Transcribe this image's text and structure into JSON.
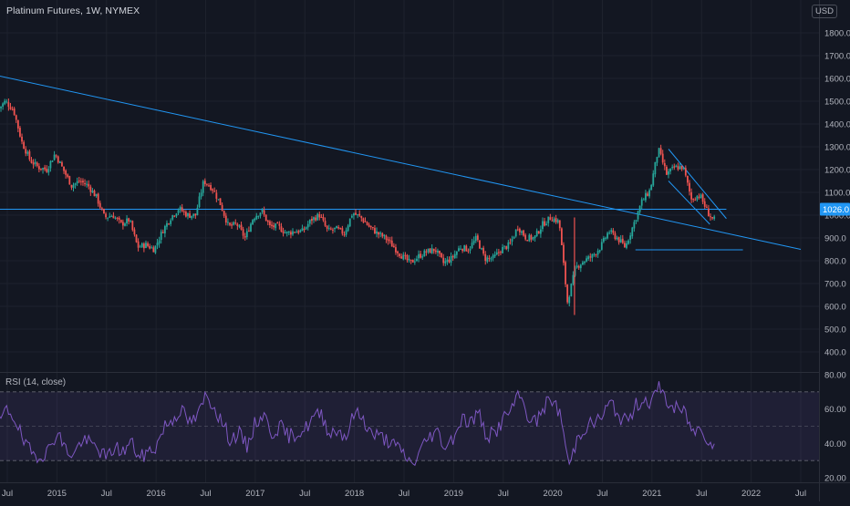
{
  "header": {
    "symbol_title": "Platinum Futures, 1W, NYMEX",
    "currency": "USD"
  },
  "rsi_panel": {
    "title": "RSI (14, close)"
  },
  "chart_data": [
    {
      "type": "candlestick",
      "title": "Platinum Futures, 1W, NYMEX",
      "xlabel": "",
      "ylabel": "",
      "currency": "USD",
      "ylim": [
        400,
        1800
      ],
      "y_ticks": [
        "1800.0",
        "1700.0",
        "1600.0",
        "1500.0",
        "1400.0",
        "1300.0",
        "1200.0",
        "1100.0",
        "1000.0",
        "900.0",
        "800.0",
        "700.0",
        "600.0",
        "500.0",
        "400.0"
      ],
      "x_ticks": [
        "Jul",
        "2015",
        "Jul",
        "2016",
        "Jul",
        "2017",
        "Jul",
        "2018",
        "Jul",
        "2019",
        "Jul",
        "2020",
        "Jul",
        "2021",
        "Jul",
        "2022",
        "Jul"
      ],
      "x_range": [
        "2014-06",
        "2022-08"
      ],
      "last_price": "1026.0",
      "grid": true,
      "colors": {
        "up": "#26a69a",
        "down": "#ef5350",
        "drawing": "#2196f3",
        "background": "#131722"
      },
      "price_path": [
        {
          "date": "2014-06",
          "price": 1460
        },
        {
          "date": "2014-07",
          "price": 1500
        },
        {
          "date": "2014-08",
          "price": 1460
        },
        {
          "date": "2014-09",
          "price": 1320
        },
        {
          "date": "2014-10",
          "price": 1240
        },
        {
          "date": "2014-11",
          "price": 1210
        },
        {
          "date": "2014-12",
          "price": 1200
        },
        {
          "date": "2015-01",
          "price": 1270
        },
        {
          "date": "2015-02",
          "price": 1200
        },
        {
          "date": "2015-03",
          "price": 1130
        },
        {
          "date": "2015-04",
          "price": 1150
        },
        {
          "date": "2015-05",
          "price": 1130
        },
        {
          "date": "2015-06",
          "price": 1080
        },
        {
          "date": "2015-07",
          "price": 990
        },
        {
          "date": "2015-08",
          "price": 1000
        },
        {
          "date": "2015-09",
          "price": 960
        },
        {
          "date": "2015-10",
          "price": 980
        },
        {
          "date": "2015-11",
          "price": 860
        },
        {
          "date": "2015-12",
          "price": 870
        },
        {
          "date": "2016-01",
          "price": 850
        },
        {
          "date": "2016-02",
          "price": 930
        },
        {
          "date": "2016-03",
          "price": 990
        },
        {
          "date": "2016-04",
          "price": 1030
        },
        {
          "date": "2016-05",
          "price": 1000
        },
        {
          "date": "2016-06",
          "price": 1000
        },
        {
          "date": "2016-07",
          "price": 1150
        },
        {
          "date": "2016-08",
          "price": 1120
        },
        {
          "date": "2016-09",
          "price": 1050
        },
        {
          "date": "2016-10",
          "price": 950
        },
        {
          "date": "2016-11",
          "price": 960
        },
        {
          "date": "2016-12",
          "price": 900
        },
        {
          "date": "2017-01",
          "price": 990
        },
        {
          "date": "2017-02",
          "price": 1020
        },
        {
          "date": "2017-03",
          "price": 950
        },
        {
          "date": "2017-04",
          "price": 950
        },
        {
          "date": "2017-05",
          "price": 920
        },
        {
          "date": "2017-06",
          "price": 930
        },
        {
          "date": "2017-07",
          "price": 930
        },
        {
          "date": "2017-08",
          "price": 980
        },
        {
          "date": "2017-09",
          "price": 1000
        },
        {
          "date": "2017-10",
          "price": 930
        },
        {
          "date": "2017-11",
          "price": 940
        },
        {
          "date": "2017-12",
          "price": 920
        },
        {
          "date": "2018-01",
          "price": 1010
        },
        {
          "date": "2018-02",
          "price": 990
        },
        {
          "date": "2018-03",
          "price": 950
        },
        {
          "date": "2018-04",
          "price": 920
        },
        {
          "date": "2018-05",
          "price": 900
        },
        {
          "date": "2018-06",
          "price": 860
        },
        {
          "date": "2018-07",
          "price": 820
        },
        {
          "date": "2018-08",
          "price": 790
        },
        {
          "date": "2018-09",
          "price": 820
        },
        {
          "date": "2018-10",
          "price": 840
        },
        {
          "date": "2018-11",
          "price": 850
        },
        {
          "date": "2018-12",
          "price": 790
        },
        {
          "date": "2019-01",
          "price": 810
        },
        {
          "date": "2019-02",
          "price": 860
        },
        {
          "date": "2019-03",
          "price": 850
        },
        {
          "date": "2019-04",
          "price": 900
        },
        {
          "date": "2019-05",
          "price": 810
        },
        {
          "date": "2019-06",
          "price": 810
        },
        {
          "date": "2019-07",
          "price": 850
        },
        {
          "date": "2019-08",
          "price": 870
        },
        {
          "date": "2019-09",
          "price": 950
        },
        {
          "date": "2019-10",
          "price": 900
        },
        {
          "date": "2019-11",
          "price": 900
        },
        {
          "date": "2019-12",
          "price": 960
        },
        {
          "date": "2020-01",
          "price": 990
        },
        {
          "date": "2020-02",
          "price": 970
        },
        {
          "date": "2020-03",
          "price": 620
        },
        {
          "date": "2020-04",
          "price": 770
        },
        {
          "date": "2020-05",
          "price": 800
        },
        {
          "date": "2020-06",
          "price": 820
        },
        {
          "date": "2020-07",
          "price": 860
        },
        {
          "date": "2020-08",
          "price": 930
        },
        {
          "date": "2020-09",
          "price": 900
        },
        {
          "date": "2020-10",
          "price": 860
        },
        {
          "date": "2020-11",
          "price": 960
        },
        {
          "date": "2020-12",
          "price": 1060
        },
        {
          "date": "2021-01",
          "price": 1110
        },
        {
          "date": "2021-02",
          "price": 1290
        },
        {
          "date": "2021-03",
          "price": 1180
        },
        {
          "date": "2021-04",
          "price": 1210
        },
        {
          "date": "2021-05",
          "price": 1210
        },
        {
          "date": "2021-06",
          "price": 1070
        },
        {
          "date": "2021-07",
          "price": 1090
        },
        {
          "date": "2021-08",
          "price": 1010
        },
        {
          "date": "2021-08-20",
          "price": 980
        }
      ]
    },
    {
      "type": "line",
      "title": "RSI (14, close)",
      "ylim": [
        20,
        80
      ],
      "y_ticks": [
        "80.00",
        "60.00",
        "40.00",
        "20.00"
      ],
      "bands": [
        70,
        50,
        30
      ],
      "colors": {
        "line": "#7e57c2",
        "band_fill": "#7e57c2"
      },
      "rsi_path": [
        {
          "date": "2014-06",
          "value": 52
        },
        {
          "date": "2014-07",
          "value": 60
        },
        {
          "date": "2014-08",
          "value": 54
        },
        {
          "date": "2014-09",
          "value": 40
        },
        {
          "date": "2014-10",
          "value": 34
        },
        {
          "date": "2014-11",
          "value": 33
        },
        {
          "date": "2014-12",
          "value": 36
        },
        {
          "date": "2015-01",
          "value": 47
        },
        {
          "date": "2015-02",
          "value": 37
        },
        {
          "date": "2015-03",
          "value": 33
        },
        {
          "date": "2015-04",
          "value": 42
        },
        {
          "date": "2015-05",
          "value": 40
        },
        {
          "date": "2015-06",
          "value": 37
        },
        {
          "date": "2015-07",
          "value": 31
        },
        {
          "date": "2015-08",
          "value": 38
        },
        {
          "date": "2015-09",
          "value": 35
        },
        {
          "date": "2015-10",
          "value": 41
        },
        {
          "date": "2015-11",
          "value": 31
        },
        {
          "date": "2015-12",
          "value": 35
        },
        {
          "date": "2016-01",
          "value": 38
        },
        {
          "date": "2016-02",
          "value": 50
        },
        {
          "date": "2016-03",
          "value": 54
        },
        {
          "date": "2016-04",
          "value": 60
        },
        {
          "date": "2016-05",
          "value": 52
        },
        {
          "date": "2016-06",
          "value": 55
        },
        {
          "date": "2016-07",
          "value": 68
        },
        {
          "date": "2016-08",
          "value": 62
        },
        {
          "date": "2016-09",
          "value": 52
        },
        {
          "date": "2016-10",
          "value": 42
        },
        {
          "date": "2016-11",
          "value": 46
        },
        {
          "date": "2016-12",
          "value": 38
        },
        {
          "date": "2017-01",
          "value": 52
        },
        {
          "date": "2017-02",
          "value": 57
        },
        {
          "date": "2017-03",
          "value": 46
        },
        {
          "date": "2017-04",
          "value": 50
        },
        {
          "date": "2017-05",
          "value": 44
        },
        {
          "date": "2017-06",
          "value": 46
        },
        {
          "date": "2017-07",
          "value": 48
        },
        {
          "date": "2017-08",
          "value": 55
        },
        {
          "date": "2017-09",
          "value": 57
        },
        {
          "date": "2017-10",
          "value": 46
        },
        {
          "date": "2017-11",
          "value": 48
        },
        {
          "date": "2017-12",
          "value": 44
        },
        {
          "date": "2018-01",
          "value": 58
        },
        {
          "date": "2018-02",
          "value": 55
        },
        {
          "date": "2018-03",
          "value": 46
        },
        {
          "date": "2018-04",
          "value": 44
        },
        {
          "date": "2018-05",
          "value": 42
        },
        {
          "date": "2018-06",
          "value": 38
        },
        {
          "date": "2018-07",
          "value": 34
        },
        {
          "date": "2018-08",
          "value": 27
        },
        {
          "date": "2018-09",
          "value": 36
        },
        {
          "date": "2018-10",
          "value": 44
        },
        {
          "date": "2018-11",
          "value": 47
        },
        {
          "date": "2018-12",
          "value": 38
        },
        {
          "date": "2019-01",
          "value": 44
        },
        {
          "date": "2019-02",
          "value": 55
        },
        {
          "date": "2019-03",
          "value": 52
        },
        {
          "date": "2019-04",
          "value": 58
        },
        {
          "date": "2019-05",
          "value": 44
        },
        {
          "date": "2019-06",
          "value": 46
        },
        {
          "date": "2019-07",
          "value": 54
        },
        {
          "date": "2019-08",
          "value": 60
        },
        {
          "date": "2019-09",
          "value": 68
        },
        {
          "date": "2019-10",
          "value": 56
        },
        {
          "date": "2019-11",
          "value": 52
        },
        {
          "date": "2019-12",
          "value": 62
        },
        {
          "date": "2020-01",
          "value": 66
        },
        {
          "date": "2020-02",
          "value": 55
        },
        {
          "date": "2020-03",
          "value": 26
        },
        {
          "date": "2020-04",
          "value": 44
        },
        {
          "date": "2020-05",
          "value": 50
        },
        {
          "date": "2020-06",
          "value": 52
        },
        {
          "date": "2020-07",
          "value": 56
        },
        {
          "date": "2020-08",
          "value": 64
        },
        {
          "date": "2020-09",
          "value": 56
        },
        {
          "date": "2020-10",
          "value": 52
        },
        {
          "date": "2020-11",
          "value": 62
        },
        {
          "date": "2020-12",
          "value": 66
        },
        {
          "date": "2021-01",
          "value": 64
        },
        {
          "date": "2021-02",
          "value": 74
        },
        {
          "date": "2021-03",
          "value": 62
        },
        {
          "date": "2021-04",
          "value": 60
        },
        {
          "date": "2021-05",
          "value": 58
        },
        {
          "date": "2021-06",
          "value": 46
        },
        {
          "date": "2021-07",
          "value": 50
        },
        {
          "date": "2021-08",
          "value": 40
        },
        {
          "date": "2021-08-20",
          "value": 42
        }
      ]
    }
  ]
}
